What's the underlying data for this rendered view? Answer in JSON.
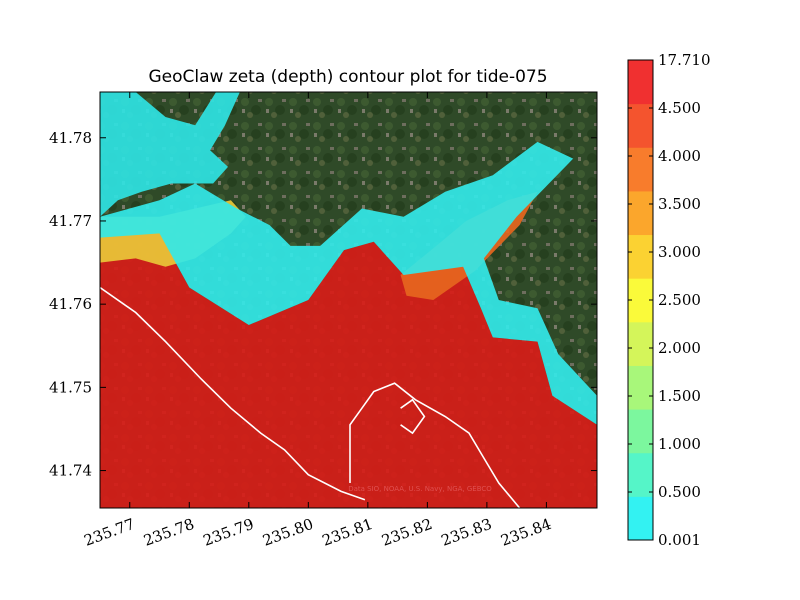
{
  "chart_data": {
    "type": "heatmap",
    "title": "GeoClaw zeta (depth) contour plot for tide-075",
    "xlim": [
      235.765,
      235.8485
    ],
    "ylim": [
      41.7355,
      41.7855
    ],
    "xticks": [
      "235.77",
      "235.78",
      "235.79",
      "235.80",
      "235.81",
      "235.82",
      "235.83",
      "235.84"
    ],
    "xtick_values": [
      235.77,
      235.78,
      235.79,
      235.8,
      235.81,
      235.82,
      235.83,
      235.84
    ],
    "yticks": [
      "41.74",
      "41.75",
      "41.76",
      "41.77",
      "41.78"
    ],
    "ytick_values": [
      41.74,
      41.75,
      41.76,
      41.77,
      41.78
    ],
    "background": "satellite imagery",
    "attribution": "Data SIO, NOAA, U.S. Navy, NGA, GEBCO",
    "colorbar": {
      "labels": [
        "0.001",
        "0.500",
        "1.000",
        "1.500",
        "2.000",
        "2.500",
        "3.000",
        "3.500",
        "4.000",
        "4.500",
        "17.710"
      ],
      "colors": [
        "#33f2f2",
        "#55f5c8",
        "#7cf79e",
        "#a8f77a",
        "#d4f55a",
        "#fafa3a",
        "#fbd232",
        "#fba62c",
        "#f87c2c",
        "#f4542e",
        "#f03030"
      ]
    },
    "regions": [
      {
        "name": "ocean-deep",
        "level": 10,
        "color": "#d81c18",
        "points": [
          [
            235.765,
            41.7355
          ],
          [
            235.765,
            41.768
          ],
          [
            235.775,
            41.7685
          ],
          [
            235.78,
            41.762
          ],
          [
            235.79,
            41.7575
          ],
          [
            235.8,
            41.7605
          ],
          [
            235.806,
            41.7665
          ],
          [
            235.811,
            41.7675
          ],
          [
            235.816,
            41.7635
          ],
          [
            235.821,
            41.764
          ],
          [
            235.826,
            41.7645
          ],
          [
            235.829,
            41.7595
          ],
          [
            235.831,
            41.756
          ],
          [
            235.8385,
            41.7555
          ],
          [
            235.841,
            41.749
          ],
          [
            235.8485,
            41.7455
          ],
          [
            235.8485,
            41.7355
          ]
        ]
      },
      {
        "name": "bay-shallow",
        "level": 8,
        "color": "#e6661e",
        "points": [
          [
            235.8155,
            41.7635
          ],
          [
            235.8215,
            41.767
          ],
          [
            235.8265,
            41.77
          ],
          [
            235.8335,
            41.7725
          ],
          [
            235.8385,
            41.7735
          ],
          [
            235.8355,
            41.7695
          ],
          [
            235.828,
            41.764
          ],
          [
            235.821,
            41.7605
          ],
          [
            235.8165,
            41.761
          ]
        ]
      },
      {
        "name": "tide-flats-west",
        "level": 6,
        "color": "#e9c838",
        "points": [
          [
            235.765,
            41.765
          ],
          [
            235.771,
            41.7655
          ],
          [
            235.776,
            41.7645
          ],
          [
            235.781,
            41.7655
          ],
          [
            235.787,
            41.7685
          ],
          [
            235.7895,
            41.7705
          ],
          [
            235.787,
            41.7725
          ],
          [
            235.781,
            41.7715
          ],
          [
            235.775,
            41.7705
          ],
          [
            235.765,
            41.7705
          ]
        ]
      },
      {
        "name": "shoreline-fringe-north",
        "level": 1,
        "color": "#33e8e8",
        "points": [
          [
            235.765,
            41.7705
          ],
          [
            235.775,
            41.7725
          ],
          [
            235.781,
            41.7745
          ],
          [
            235.788,
            41.7715
          ],
          [
            235.7935,
            41.7695
          ],
          [
            235.797,
            41.767
          ],
          [
            235.802,
            41.767
          ],
          [
            235.809,
            41.7715
          ],
          [
            235.816,
            41.7705
          ],
          [
            235.823,
            41.7735
          ],
          [
            235.831,
            41.7755
          ],
          [
            235.8385,
            41.7795
          ],
          [
            235.8445,
            41.7775
          ],
          [
            235.835,
            41.7705
          ],
          [
            235.8295,
            41.7655
          ],
          [
            235.832,
            41.7605
          ],
          [
            235.8385,
            41.7595
          ],
          [
            235.842,
            41.754
          ],
          [
            235.8485,
            41.749
          ],
          [
            235.8485,
            41.7455
          ],
          [
            235.841,
            41.749
          ],
          [
            235.8385,
            41.7555
          ],
          [
            235.831,
            41.756
          ],
          [
            235.829,
            41.7595
          ],
          [
            235.826,
            41.7645
          ],
          [
            235.816,
            41.7635
          ],
          [
            235.811,
            41.7675
          ],
          [
            235.806,
            41.7665
          ],
          [
            235.8,
            41.7605
          ],
          [
            235.79,
            41.7575
          ],
          [
            235.78,
            41.762
          ],
          [
            235.775,
            41.7685
          ],
          [
            235.765,
            41.768
          ]
        ]
      },
      {
        "name": "cyan-northwest",
        "level": 1,
        "color": "#2fe3e3",
        "points": [
          [
            235.765,
            41.7705
          ],
          [
            235.765,
            41.7855
          ],
          [
            235.771,
            41.7855
          ],
          [
            235.776,
            41.7825
          ],
          [
            235.781,
            41.7815
          ],
          [
            235.7845,
            41.7855
          ],
          [
            235.7885,
            41.7855
          ],
          [
            235.786,
            41.7815
          ],
          [
            235.7835,
            41.7785
          ],
          [
            235.7865,
            41.7765
          ],
          [
            235.784,
            41.7745
          ],
          [
            235.777,
            41.7745
          ],
          [
            235.772,
            41.7735
          ],
          [
            235.768,
            41.7725
          ]
        ]
      }
    ],
    "contours": [
      {
        "name": "coastline-outer",
        "points": [
          [
            235.765,
            41.762
          ],
          [
            235.771,
            41.759
          ],
          [
            235.776,
            41.7555
          ],
          [
            235.782,
            41.751
          ],
          [
            235.787,
            41.7475
          ],
          [
            235.792,
            41.7445
          ],
          [
            235.796,
            41.7425
          ],
          [
            235.8,
            41.7395
          ],
          [
            235.8055,
            41.7375
          ],
          [
            235.8095,
            41.7365
          ]
        ]
      },
      {
        "name": "harbor-breakwater",
        "points": [
          [
            235.807,
            41.7385
          ],
          [
            235.807,
            41.7455
          ],
          [
            235.809,
            41.7475
          ],
          [
            235.811,
            41.7495
          ],
          [
            235.8145,
            41.7505
          ],
          [
            235.818,
            41.7485
          ],
          [
            235.823,
            41.7465
          ],
          [
            235.827,
            41.7445
          ],
          [
            235.8295,
            41.7415
          ],
          [
            235.832,
            41.7385
          ],
          [
            235.8355,
            41.7355
          ]
        ]
      },
      {
        "name": "harbor-inner",
        "points": [
          [
            235.8155,
            41.7455
          ],
          [
            235.8175,
            41.7445
          ],
          [
            235.8195,
            41.7465
          ],
          [
            235.8175,
            41.7485
          ],
          [
            235.8155,
            41.7475
          ]
        ]
      }
    ]
  }
}
